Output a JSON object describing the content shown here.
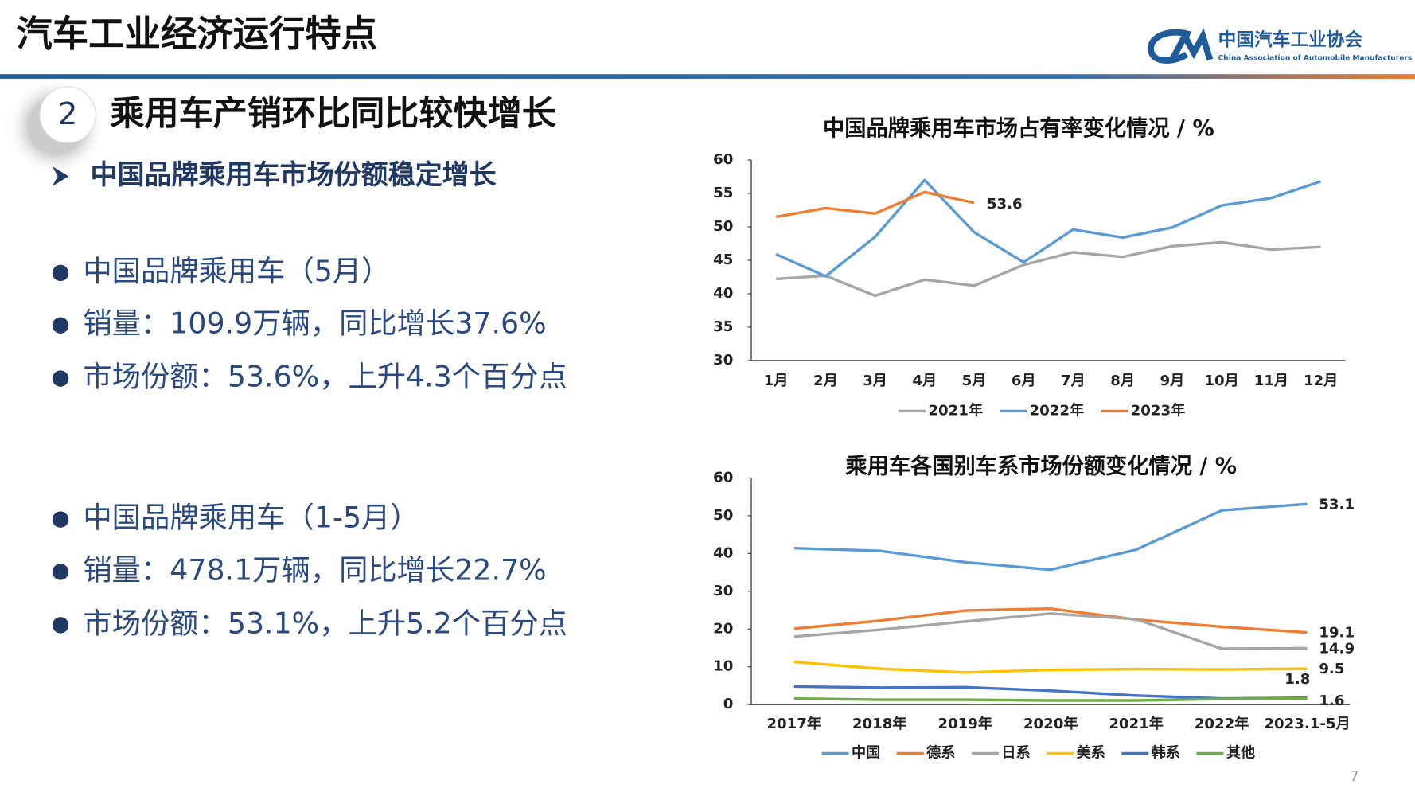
{
  "header": {
    "title": "汽车工业经济运行特点",
    "logo_cn": "中国汽车工业协会",
    "logo_en": "China Association of Automobile Manufacturers"
  },
  "section": {
    "number": "2",
    "title": "乘用车产销环比同比较快增长",
    "subtitle": "中国品牌乘用车市场份额稳定增长"
  },
  "bullets": [
    [
      "中国品牌乘用车（5月）",
      "销量：109.9万辆，同比增长37.6%",
      "市场份额：53.6%，上升4.3个百分点"
    ],
    [
      "中国品牌乘用车（1-5月）",
      "销量：478.1万辆，同比增长22.7%",
      "市场份额：53.1%，上升5.2个百分点"
    ]
  ],
  "page_number": "7",
  "chart_data": [
    {
      "type": "line",
      "title": "中国品牌乘用车市场占有率变化情况 / %",
      "categories": [
        "1月",
        "2月",
        "3月",
        "4月",
        "5月",
        "6月",
        "7月",
        "8月",
        "9月",
        "10月",
        "11月",
        "12月"
      ],
      "ylim": [
        30,
        60
      ],
      "yticks": [
        30,
        35,
        40,
        45,
        50,
        55,
        60
      ],
      "grid": false,
      "series": [
        {
          "name": "2021年",
          "color": "#a5a5a5",
          "values": [
            42.2,
            42.7,
            39.7,
            42.1,
            41.2,
            44.3,
            46.2,
            45.5,
            47.1,
            47.7,
            46.6,
            47.0
          ]
        },
        {
          "name": "2022年",
          "color": "#5b9bd5",
          "values": [
            45.9,
            42.6,
            48.5,
            57.0,
            49.2,
            44.7,
            49.6,
            48.4,
            49.9,
            53.2,
            54.3,
            56.8
          ]
        },
        {
          "name": "2023年",
          "color": "#ed7d31",
          "values": [
            51.5,
            52.8,
            52.0,
            55.2,
            53.6,
            null,
            null,
            null,
            null,
            null,
            null,
            null
          ],
          "value_labels": [
            null,
            null,
            null,
            null,
            "53.6",
            null,
            null,
            null,
            null,
            null,
            null,
            null
          ]
        }
      ]
    },
    {
      "type": "line",
      "title": "乘用车各国别车系市场份额变化情况 / %",
      "categories": [
        "2017年",
        "2018年",
        "2019年",
        "2020年",
        "2021年",
        "2022年",
        "2023.1-5月"
      ],
      "ylim": [
        0,
        60
      ],
      "yticks": [
        0,
        10,
        20,
        30,
        40,
        50,
        60
      ],
      "grid": false,
      "series": [
        {
          "name": "中国",
          "color": "#5b9bd5",
          "values": [
            41.4,
            40.7,
            37.7,
            35.7,
            41.0,
            51.4,
            53.1
          ],
          "value_labels": [
            null,
            null,
            null,
            null,
            null,
            null,
            "53.1"
          ]
        },
        {
          "name": "德系",
          "color": "#ed7d31",
          "values": [
            20.1,
            22.2,
            24.9,
            25.4,
            22.5,
            20.6,
            19.1
          ],
          "value_labels": [
            null,
            null,
            null,
            null,
            null,
            null,
            "19.1"
          ]
        },
        {
          "name": "日系",
          "color": "#a5a5a5",
          "values": [
            18.0,
            19.8,
            22.0,
            24.1,
            22.6,
            14.8,
            14.9
          ],
          "value_labels": [
            null,
            null,
            null,
            null,
            null,
            null,
            "14.9"
          ]
        },
        {
          "name": "美系",
          "color": "#ffc000",
          "values": [
            11.3,
            9.5,
            8.5,
            9.2,
            9.4,
            9.3,
            9.5
          ],
          "value_labels": [
            null,
            null,
            null,
            null,
            null,
            null,
            "9.5"
          ]
        },
        {
          "name": "韩系",
          "color": "#4472c4",
          "values": [
            4.8,
            4.5,
            4.6,
            3.7,
            2.4,
            1.6,
            1.8
          ],
          "value_labels": [
            null,
            null,
            null,
            null,
            null,
            null,
            "1.8"
          ]
        },
        {
          "name": "其他",
          "color": "#70ad47",
          "values": [
            1.6,
            1.3,
            1.3,
            1.1,
            1.1,
            1.5,
            1.6
          ],
          "value_labels": [
            null,
            null,
            null,
            null,
            null,
            null,
            "1.6"
          ]
        }
      ]
    }
  ]
}
